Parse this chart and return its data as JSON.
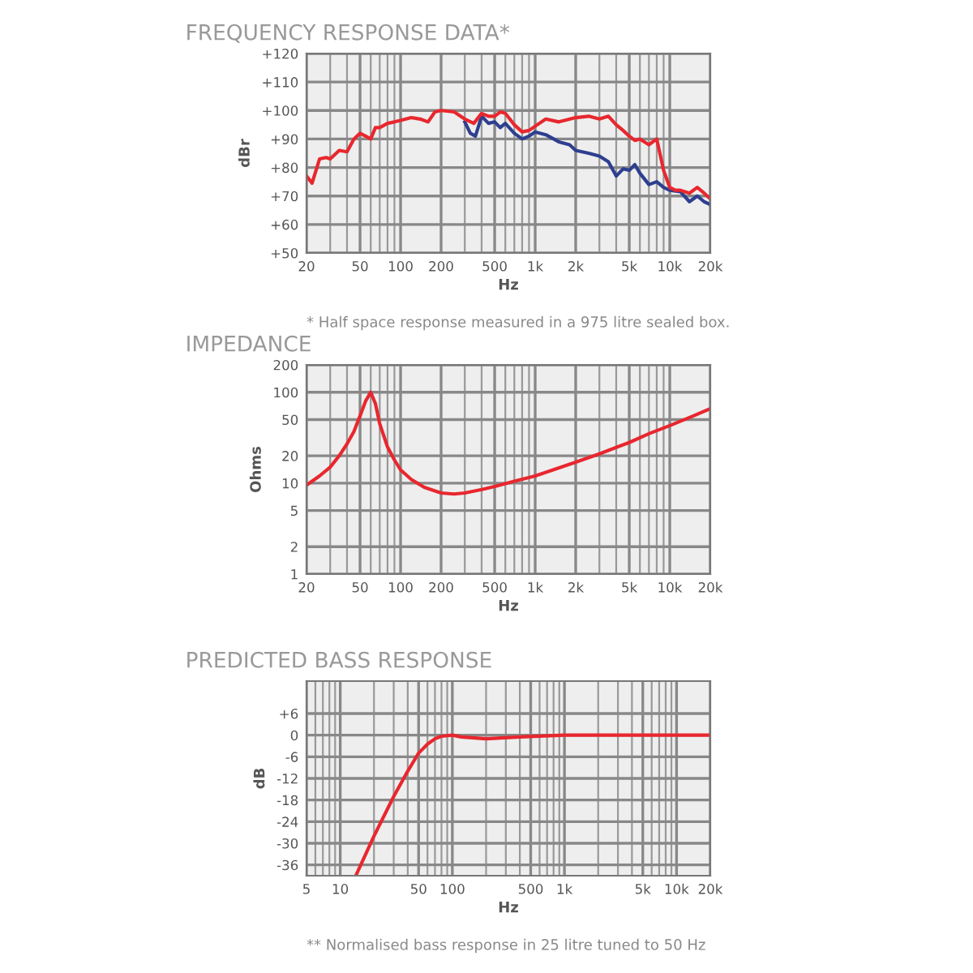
{
  "chart_data": [
    {
      "type": "line",
      "title": "FREQUENCY RESPONSE DATA*",
      "xlabel": "Hz",
      "ylabel": "dBr",
      "log": "x",
      "grid": true,
      "xlim": [
        20,
        20000
      ],
      "xticks": [
        20,
        50,
        100,
        200,
        500,
        {
          "value": 1000,
          "label": "1k"
        },
        {
          "value": 2000,
          "label": "2k"
        },
        {
          "value": 5000,
          "label": "5k"
        },
        {
          "value": 10000,
          "label": "10k"
        },
        {
          "value": 20000,
          "label": "20k"
        }
      ],
      "ylim": [
        50,
        120
      ],
      "yticks": [
        {
          "value": 50,
          "label": "+50"
        },
        {
          "value": 60,
          "label": "+60"
        },
        {
          "value": 70,
          "label": "+70"
        },
        {
          "value": 80,
          "label": "+80"
        },
        {
          "value": 90,
          "label": "+90"
        },
        {
          "value": 100,
          "label": "+100"
        },
        {
          "value": 110,
          "label": "+110"
        },
        {
          "value": 120,
          "label": "+120"
        }
      ],
      "annotations": [
        "* Half space response measured in a 975 litre sealed box."
      ],
      "series": [
        {
          "color": "#2e3f8f",
          "x": [
            300,
            330,
            360,
            400,
            450,
            500,
            550,
            600,
            700,
            800,
            900,
            1000,
            1200,
            1500,
            1800,
            2000,
            2500,
            3000,
            3500,
            4000,
            4500,
            5000,
            5500,
            6000,
            7000,
            8000,
            9000,
            10000,
            12000,
            14000,
            16000,
            18000,
            20000
          ],
          "values": [
            96,
            92,
            91,
            98,
            95.5,
            96,
            94,
            95.5,
            92,
            90,
            91,
            92.5,
            91.5,
            89,
            88,
            86,
            85,
            84,
            82,
            77,
            79.5,
            79,
            81,
            78,
            74,
            75,
            73,
            72,
            71.5,
            68,
            70,
            68,
            67
          ]
        },
        {
          "color": "#e8272e",
          "x": [
            20,
            22,
            25,
            28,
            30,
            35,
            40,
            45,
            50,
            55,
            60,
            65,
            70,
            80,
            90,
            100,
            120,
            140,
            160,
            180,
            200,
            250,
            300,
            350,
            400,
            450,
            500,
            550,
            600,
            700,
            800,
            900,
            1000,
            1200,
            1500,
            2000,
            2500,
            3000,
            3500,
            4000,
            4500,
            5000,
            5500,
            6000,
            7000,
            8000,
            9000,
            10000,
            11000,
            12000,
            14000,
            16000,
            18000,
            20000
          ],
          "values": [
            77,
            74.5,
            83,
            83.5,
            83,
            86,
            85.5,
            90,
            92,
            91,
            90,
            94,
            94,
            95.5,
            96,
            96.5,
            97.5,
            97,
            96,
            99.5,
            100,
            99.5,
            97,
            95.5,
            99,
            98,
            98,
            99.5,
            99,
            95,
            92.5,
            93,
            94.5,
            97,
            96,
            97.5,
            98,
            97,
            98,
            95,
            93,
            91,
            89.5,
            90,
            88,
            90,
            79,
            73,
            72,
            72,
            71,
            73,
            71,
            69
          ]
        }
      ]
    },
    {
      "type": "line",
      "title": "IMPEDANCE",
      "xlabel": "Hz",
      "ylabel": "Ohms",
      "log": "xy",
      "grid": true,
      "xlim": [
        20,
        20000
      ],
      "xticks": [
        20,
        50,
        100,
        200,
        500,
        {
          "value": 1000,
          "label": "1k"
        },
        {
          "value": 2000,
          "label": "2k"
        },
        {
          "value": 5000,
          "label": "5k"
        },
        {
          "value": 10000,
          "label": "10k"
        },
        {
          "value": 20000,
          "label": "20k"
        }
      ],
      "ylim": [
        1,
        200
      ],
      "yticks": [
        1,
        2,
        5,
        10,
        20,
        50,
        100,
        200
      ],
      "series": [
        {
          "color": "#e8272e",
          "x": [
            20,
            25,
            30,
            35,
            40,
            45,
            50,
            55,
            60,
            65,
            70,
            80,
            90,
            100,
            120,
            150,
            200,
            250,
            300,
            400,
            500,
            700,
            1000,
            2000,
            3000,
            5000,
            7000,
            10000,
            15000,
            20000
          ],
          "values": [
            9.5,
            12,
            15,
            20,
            27,
            37,
            55,
            80,
            100,
            75,
            45,
            25,
            18,
            14,
            11,
            9,
            7.8,
            7.6,
            7.8,
            8.5,
            9.2,
            10.5,
            12,
            17,
            21,
            28,
            35,
            43,
            55,
            66
          ]
        }
      ]
    },
    {
      "type": "line",
      "title": "PREDICTED BASS RESPONSE",
      "xlabel": "Hz",
      "ylabel": "dB",
      "log": "x",
      "grid": true,
      "xlim": [
        5,
        20000
      ],
      "xticks": [
        5,
        10,
        50,
        100,
        500,
        {
          "value": 1000,
          "label": "1k"
        },
        {
          "value": 5000,
          "label": "5k"
        },
        {
          "value": 10000,
          "label": "10k"
        },
        {
          "value": 20000,
          "label": "20k"
        }
      ],
      "ylim": [
        -39,
        15
      ],
      "yticks": [
        {
          "value": 6,
          "label": "+6"
        },
        0,
        -6,
        -12,
        -18,
        -24,
        -30,
        -36
      ],
      "annotations": [
        "** Normalised bass response in 25 litre tuned to 50 Hz"
      ],
      "series": [
        {
          "color": "#e8272e",
          "x": [
            14,
            20,
            30,
            40,
            50,
            60,
            70,
            80,
            100,
            120,
            200,
            400,
            1000,
            20000
          ],
          "values": [
            -38.5,
            -28,
            -17,
            -10,
            -5,
            -2.5,
            -1,
            -0.3,
            0,
            -0.5,
            -1,
            -0.5,
            0,
            0
          ]
        }
      ]
    }
  ]
}
